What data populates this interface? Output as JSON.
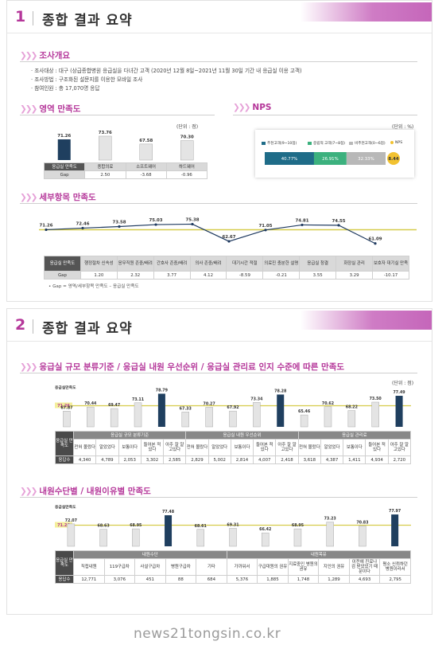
{
  "slide1": {
    "num": "1",
    "title": "종합 결과 요약",
    "survey": {
      "heading": "조사개요",
      "lines": [
        "· 조사대상 : 대구 (상급종합병원 응급실을 다녀간 고객 (2020년 12월 8일~2021년 11월 30일 기간 내 응급실 이용 고객)",
        "· 조사방법 : 구조화된 설문지를 이용한 모바일 조사",
        "· 참여인원 : 총 17,070명 응답"
      ]
    },
    "area": {
      "heading": "영역 만족도",
      "unit": "(단위 : 점)",
      "row_label_name": "응급실 만족도",
      "row_label_gap": "Gap",
      "categories": [
        "응급실 만족도",
        "응급실 만족도",
        "의료진",
        "소프트웨어",
        "하드웨어"
      ],
      "headers": [
        "응급실 만족도",
        "종합의료",
        "소프트웨어",
        "하드웨어"
      ],
      "gaps": [
        "2.50",
        "-3.68",
        "-0.96"
      ]
    },
    "nps": {
      "heading": "NPS",
      "unit": "(단위 : %)",
      "legend": [
        "추천고객(9~10점)",
        "중립적 고객(7~8점)",
        "비추천고객(0~6점)",
        "NPS"
      ],
      "values_label": [
        "40.77%",
        "26.91%",
        "32.33%"
      ],
      "score": "8.44"
    },
    "detail": {
      "heading": "세부항목 만족도",
      "headers": [
        "응급실 만족도",
        "행정절차 신속성",
        "응무직원 존중/배려",
        "간호사 존중/배려",
        "의사 존중/배려",
        "대기시간 적절",
        "의료진 충분한 설명",
        "응급실 청결",
        "화장실 관리",
        "보호자 대기실 만족"
      ],
      "gap_label": "Gap",
      "gaps": [
        "1.20",
        "2.32",
        "3.77",
        "4.12",
        "-8.59",
        "-0.21",
        "3.55",
        "3.29",
        "-10.17"
      ],
      "note": "• Gap = 영역/세부항목 만족도 – 응급실 만족도"
    }
  },
  "slide2": {
    "num": "2",
    "title": "종합 결과 요약",
    "sec_a": {
      "heading": "응급실 규모 분류기준 / 응급실 내원 우선순위 / 응급실 관리료 인지 수준에 따른 만족도",
      "unit": "(단위 : 점)",
      "ref_label": "응급실만족도",
      "ref_value": "71.26",
      "left_label": "응급실 만족도",
      "n_label": "응답수",
      "groups": [
        "응급실 규모 분류기준",
        "응급실 내원 우선순위",
        "응급실 관리료"
      ],
      "subs": [
        "전혀 몰랐다",
        "알았었다",
        "보통이다",
        "들어본 적 있다",
        "아주 잘 알고있다",
        "전혀 몰랐다",
        "알았었다",
        "보통이다",
        "들어본 적 있다",
        "아주 잘 알고있다",
        "전혀 몰랐다",
        "알았었다",
        "보통이다",
        "들어본 적 있다",
        "아주 잘 알고있다"
      ],
      "counts": [
        "4,340",
        "4,789",
        "2,053",
        "3,302",
        "2,585",
        "2,829",
        "5,002",
        "2,814",
        "4,007",
        "2,418",
        "3,618",
        "4,387",
        "1,411",
        "4,934",
        "2,720"
      ]
    },
    "sec_b": {
      "heading": "내원수단별 / 내원이유별 만족도",
      "ref_label": "응급실만족도",
      "ref_value": "71.26",
      "left_label": "응급실 만족도",
      "n_label": "응답수",
      "groups": [
        "내원수단",
        "내원목유"
      ],
      "subs": [
        "직접내원",
        "119구급차",
        "사설구급차",
        "병원구급차",
        "기타",
        "가까워서",
        "구급대원의 권유",
        "지료중인 병원의 권유",
        "지인의 권유",
        "이전에 진료나 검 받았었기 때문이다",
        "평소 신뢰하던 병원이라서"
      ],
      "counts": [
        "12,771",
        "3,076",
        "451",
        "88",
        "684",
        "5,376",
        "1,885",
        "1,748",
        "1,289",
        "4,693",
        "2,795"
      ]
    }
  },
  "watermark": "news21tongsin.co.kr",
  "chart_data": [
    {
      "type": "bar",
      "title": "영역 만족도",
      "categories": [
        "응급실 만족도",
        "종합의료",
        "소프트웨어",
        "하드웨어"
      ],
      "values": [
        71.26,
        73.76,
        67.58,
        70.3
      ]
    },
    {
      "type": "bar",
      "title": "NPS",
      "categories": [
        "추천고객(9~10점)",
        "중립적 고객(7~8점)",
        "비추천고객(0~6점)"
      ],
      "values": [
        40.77,
        26.91,
        32.33
      ],
      "nps": 8.44
    },
    {
      "type": "line",
      "title": "세부항목 만족도",
      "categories": [
        "응급실 만족도",
        "행정절차 신속성",
        "응무직원 존중/배려",
        "간호사 존중/배려",
        "의사 존중/배려",
        "대기시간 적절",
        "의료진 충분한 설명",
        "응급실 청결",
        "화장실 관리",
        "보호자 대기실 만족"
      ],
      "values": [
        71.26,
        72.46,
        73.58,
        75.03,
        75.38,
        62.67,
        71.05,
        74.81,
        74.55,
        61.09
      ],
      "reference": 71.26
    },
    {
      "type": "bar",
      "title": "응급실 규모 분류기준 / 응급실 내원 우선순위 / 응급실 관리료 인지 수준에 따른 만족도",
      "values": [
        67.87,
        70.44,
        69.47,
        73.11,
        78.79,
        67.33,
        70.27,
        67.92,
        73.34,
        78.28,
        65.46,
        70.62,
        68.22,
        73.5,
        77.49
      ],
      "reference": 71.26
    },
    {
      "type": "bar",
      "title": "내원수단별 / 내원이유별 만족도",
      "values": [
        72.07,
        68.63,
        68.95,
        77.48,
        68.61,
        69.31,
        66.42,
        68.95,
        73.23,
        70.83,
        77.97
      ],
      "reference": 71.26
    }
  ]
}
